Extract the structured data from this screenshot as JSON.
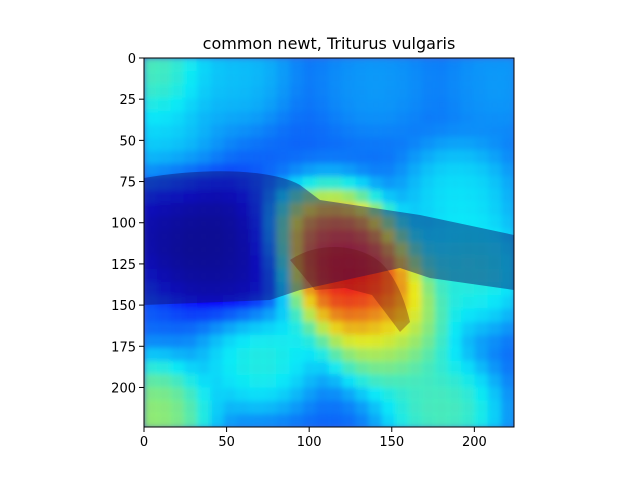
{
  "chart_data": {
    "type": "heatmap",
    "title": "common newt, Triturus vulgaris",
    "xlabel": "",
    "ylabel": "",
    "xlim": [
      0,
      224
    ],
    "ylim": [
      224,
      0
    ],
    "xticks": [
      0,
      50,
      100,
      150,
      200
    ],
    "yticks": [
      0,
      25,
      50,
      75,
      100,
      125,
      150,
      175,
      200
    ],
    "xtick_labels": [
      "0",
      "50",
      "100",
      "150",
      "200"
    ],
    "ytick_labels": [
      "0",
      "25",
      "50",
      "75",
      "100",
      "125",
      "150",
      "175",
      "200"
    ],
    "grid": false,
    "colormap": "jet",
    "description_of_overlay": "",
    "hotspots": [
      {
        "x": 120,
        "y": 127,
        "value": 1.0
      },
      {
        "x": 140,
        "y": 148,
        "value": 0.95
      },
      {
        "x": 110,
        "y": 115,
        "value": 0.85
      },
      {
        "x": 150,
        "y": 170,
        "value": 0.55
      },
      {
        "x": 200,
        "y": 130,
        "value": 0.45
      },
      {
        "x": 190,
        "y": 85,
        "value": 0.4
      },
      {
        "x": 70,
        "y": 180,
        "value": 0.45
      },
      {
        "x": 180,
        "y": 215,
        "value": 0.5
      },
      {
        "x": 5,
        "y": 218,
        "value": 0.6
      },
      {
        "x": 5,
        "y": 5,
        "value": 0.5
      },
      {
        "x": 55,
        "y": 10,
        "value": 0.35
      },
      {
        "x": 140,
        "y": 15,
        "value": 0.3
      },
      {
        "x": 215,
        "y": 15,
        "value": 0.3
      },
      {
        "x": 10,
        "y": 60,
        "value": 0.4
      }
    ],
    "cold_regions": [
      {
        "x": 35,
        "y": 110,
        "value": 0.0
      },
      {
        "x": 15,
        "y": 90,
        "value": 0.05
      },
      {
        "x": 60,
        "y": 130,
        "value": 0.05
      }
    ]
  }
}
